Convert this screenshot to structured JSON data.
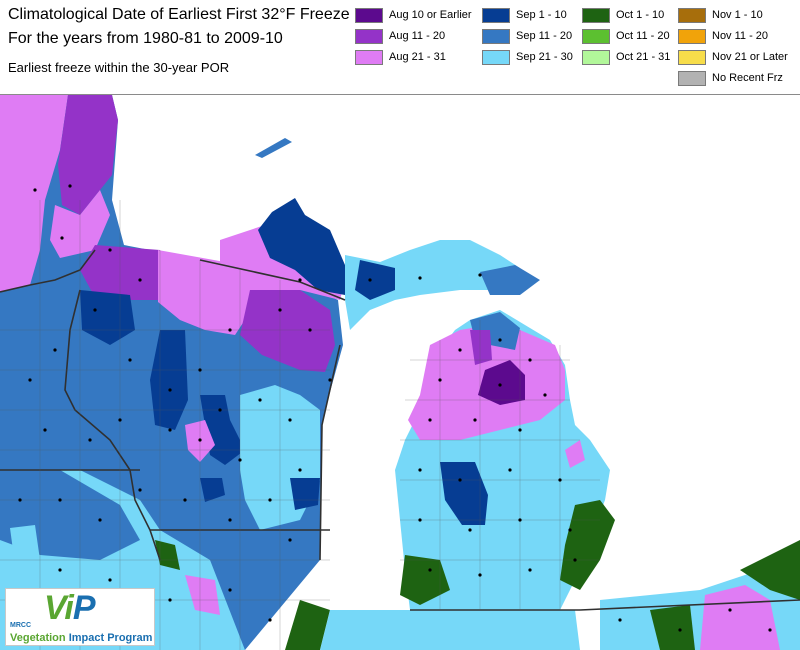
{
  "header": {
    "title": "Climatological Date of Earliest First 32°F Freeze",
    "subtitle": "For the years from 1980-81 to 2009-10",
    "note": "Earliest freeze within the 30-year POR"
  },
  "legend": [
    {
      "label": "Aug 10 or Earlier",
      "color": "#5c0a8e"
    },
    {
      "label": "Aug 11 - 20",
      "color": "#9433c8"
    },
    {
      "label": "Aug 21 - 31",
      "color": "#df7cf4"
    },
    {
      "label": "Sep 1 - 10",
      "color": "#063d93"
    },
    {
      "label": "Sep 11 - 20",
      "color": "#3578c2"
    },
    {
      "label": "Sep 21 - 30",
      "color": "#76d8f8"
    },
    {
      "label": "Oct 1 - 10",
      "color": "#1e6312"
    },
    {
      "label": "Oct 11 - 20",
      "color": "#5cc030"
    },
    {
      "label": "Oct 21 - 31",
      "color": "#b2f79a"
    },
    {
      "label": "Nov 1 - 10",
      "color": "#a76e0c"
    },
    {
      "label": "Nov 11 - 20",
      "color": "#f1a30a"
    },
    {
      "label": "Nov 21 or Later",
      "color": "#f7dd4a"
    },
    {
      "label": "No Recent Frz",
      "color": "#b2b2b2"
    }
  ],
  "map": {
    "water_color": "#ffffff",
    "border_color": "#303030",
    "station_marker": "dot"
  },
  "logo": {
    "org": "MRCC",
    "mark_v": "V",
    "mark_i": "i",
    "mark_p": "P",
    "program_word1": "Vegetation",
    "program_word2": "Impact",
    "program_word3": "Program"
  }
}
